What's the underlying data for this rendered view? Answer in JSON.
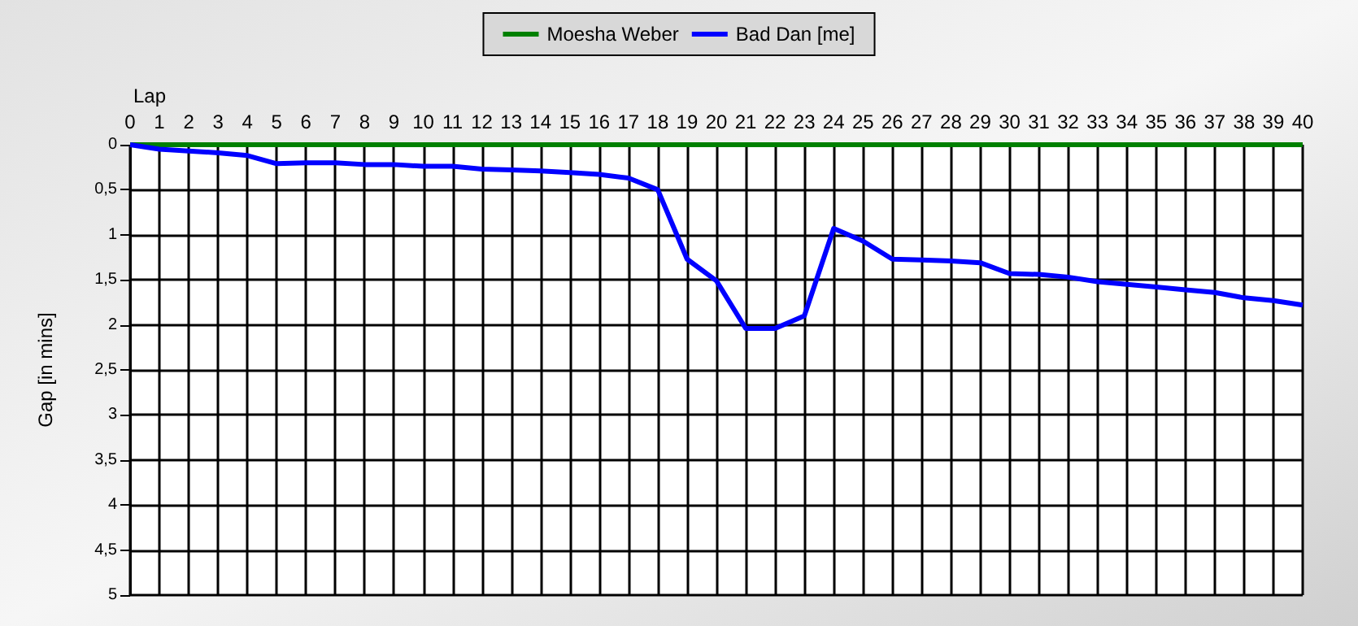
{
  "chart_data": {
    "type": "line",
    "xlabel": "Lap",
    "ylabel": "Gap [in mins]",
    "x": [
      0,
      1,
      2,
      3,
      4,
      5,
      6,
      7,
      8,
      9,
      10,
      11,
      12,
      13,
      14,
      15,
      16,
      17,
      18,
      19,
      20,
      21,
      22,
      23,
      24,
      25,
      26,
      27,
      28,
      29,
      30,
      31,
      32,
      33,
      34,
      35,
      36,
      37,
      38,
      39,
      40
    ],
    "series": [
      {
        "name": "Moesha Weber",
        "color": "#008000",
        "values": [
          0,
          0,
          0,
          0,
          0,
          0,
          0,
          0,
          0,
          0,
          0,
          0,
          0,
          0,
          0,
          0,
          0,
          0,
          0,
          0,
          0,
          0,
          0,
          0,
          0,
          0,
          0,
          0,
          0,
          0,
          0,
          0,
          0,
          0,
          0,
          0,
          0,
          0,
          0,
          0,
          0
        ]
      },
      {
        "name": "Bad Dan [me]",
        "color": "#0000ff",
        "values": [
          0,
          0.05,
          0.07,
          0.09,
          0.12,
          0.21,
          0.2,
          0.2,
          0.22,
          0.22,
          0.24,
          0.24,
          0.27,
          0.28,
          0.29,
          0.31,
          0.33,
          0.37,
          0.5,
          1.27,
          1.51,
          2.04,
          2.04,
          1.9,
          0.93,
          1.07,
          1.27,
          1.28,
          1.29,
          1.31,
          1.43,
          1.44,
          1.47,
          1.52,
          1.55,
          1.58,
          1.61,
          1.64,
          1.7,
          1.73,
          1.78
        ]
      }
    ],
    "xlim": [
      0,
      40
    ],
    "xticks": [
      0,
      1,
      2,
      3,
      4,
      5,
      6,
      7,
      8,
      9,
      10,
      11,
      12,
      13,
      14,
      15,
      16,
      17,
      18,
      19,
      20,
      21,
      22,
      23,
      24,
      25,
      26,
      27,
      28,
      29,
      30,
      31,
      32,
      33,
      34,
      35,
      36,
      37,
      38,
      39,
      40
    ],
    "ylim": [
      5,
      0
    ],
    "yticks": [
      0,
      {
        "value": 0.5,
        "label": "0,5"
      },
      1,
      {
        "value": 1.5,
        "label": "1,5"
      },
      2,
      {
        "value": 2.5,
        "label": "2,5"
      },
      3,
      {
        "value": 3.5,
        "label": "3,5"
      },
      4,
      {
        "value": 4.5,
        "label": "4,5"
      },
      5
    ],
    "grid": true,
    "legend": "top",
    "marker": "none",
    "line_style": "solid"
  }
}
